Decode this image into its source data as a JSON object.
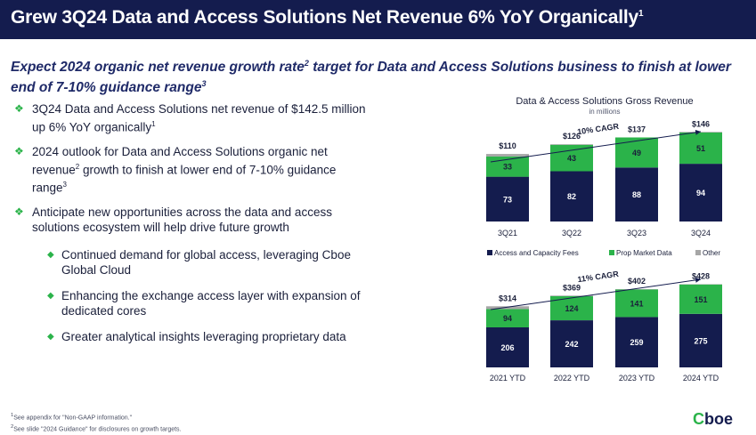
{
  "header": {
    "title": "Grew 3Q24 Data and Access Solutions Net Revenue 6% YoY Organically",
    "title_sup": "1"
  },
  "subtitle": {
    "part1": "Expect 2024 organic net revenue growth rate",
    "sup1": "2",
    "part2": " target for Data and Access Solutions business to finish at lower end of 7-10% guidance range",
    "sup2": "3"
  },
  "bullets": {
    "b1": {
      "text": "3Q24 Data and Access Solutions net revenue of $142.5 million up 6% YoY organically",
      "sup": "1"
    },
    "b2": {
      "text1": "2024 outlook for Data and Access Solutions organic net revenue",
      "sup1": "2",
      "text2": " growth to finish at lower end of 7-10% guidance range",
      "sup2": "3"
    },
    "b3": {
      "text": "Anticipate new opportunities across the data and access solutions ecosystem will help drive future growth"
    },
    "sub": [
      "Continued demand for global access, leveraging Cboe Global Cloud",
      "Enhancing the exchange access layer with expansion of dedicated cores",
      "Greater analytical insights leveraging proprietary data"
    ]
  },
  "footnotes": {
    "f1": "See appendix for \"Non-GAAP information.\"",
    "f1_sup": "1",
    "f2": "See slide \"2024 Guidance\" for disclosures on growth targets.",
    "f2_sup": "2"
  },
  "logo": {
    "part1": "C",
    "part2": "boe"
  },
  "colors": {
    "navy": "#141c4e",
    "green": "#2bb34a",
    "gray": "#a6a6a6",
    "text": "#1a1f3a"
  },
  "chart_data": [
    {
      "type": "bar",
      "stacked": true,
      "title": "Data & Access Solutions Gross Revenue",
      "subtitle": "in millions",
      "categories": [
        "3Q21",
        "3Q22",
        "3Q23",
        "3Q24"
      ],
      "series": [
        {
          "name": "Access and Capacity Fees",
          "color": "#141c4e",
          "values": [
            73,
            82,
            88,
            94
          ]
        },
        {
          "name": "Prop Market Data",
          "color": "#2bb34a",
          "values": [
            33,
            43,
            49,
            51
          ]
        },
        {
          "name": "Other",
          "color": "#a6a6a6",
          "values": [
            4,
            1,
            0,
            1
          ]
        }
      ],
      "totals": [
        "$110",
        "$126",
        "$137",
        "$146"
      ],
      "cagr_label": "10% CAGR",
      "legend_position": "bottom"
    },
    {
      "type": "bar",
      "stacked": true,
      "categories": [
        "2021 YTD",
        "2022 YTD",
        "2023 YTD",
        "2024 YTD"
      ],
      "series": [
        {
          "name": "Access and Capacity Fees",
          "color": "#141c4e",
          "values": [
            206,
            242,
            259,
            275
          ]
        },
        {
          "name": "Prop Market Data",
          "color": "#2bb34a",
          "values": [
            94,
            124,
            141,
            151
          ]
        },
        {
          "name": "Other",
          "color": "#a6a6a6",
          "values": [
            14,
            3,
            2,
            2
          ]
        }
      ],
      "totals": [
        "$314",
        "$369",
        "$402",
        "$428"
      ],
      "cagr_label": "11% CAGR"
    }
  ]
}
